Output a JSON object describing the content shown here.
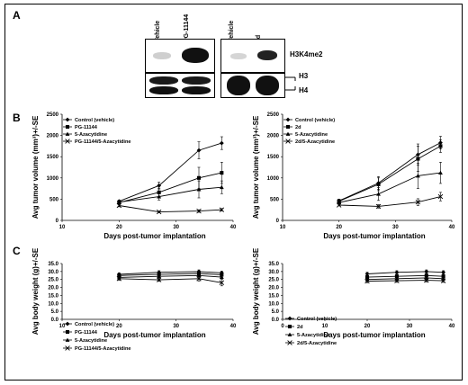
{
  "panels": {
    "a": "A",
    "b": "B",
    "c": "C"
  },
  "blot": {
    "left_lanes": [
      "Vehicle",
      "PG-11144"
    ],
    "right_lanes": [
      "Vehicle",
      "2d"
    ],
    "label_h3k4me2": "H3K4me2",
    "label_h3": "H3",
    "label_h4": "H4"
  },
  "chart_data": [
    {
      "type": "line",
      "ylabel": "Avg tumor volume (mm³)+/-SE",
      "xlabel": "Days post-tumor implantation",
      "xlim": [
        10,
        40
      ],
      "ylim": [
        0,
        2500
      ],
      "xticks": [
        10,
        20,
        30,
        40
      ],
      "yticks": [
        0,
        500,
        1000,
        1500,
        2000,
        2500
      ],
      "legend": "top-left",
      "series": [
        {
          "name": "Control (vehicle)",
          "marker": "diamond",
          "x": [
            20,
            27,
            34,
            38
          ],
          "y": [
            450,
            820,
            1650,
            1820
          ],
          "err": [
            30,
            80,
            200,
            150
          ]
        },
        {
          "name": "PG-11144",
          "marker": "square",
          "x": [
            20,
            27,
            34,
            38
          ],
          "y": [
            420,
            660,
            1000,
            1120
          ],
          "err": [
            30,
            100,
            250,
            250
          ]
        },
        {
          "name": "5-Azacytidine",
          "marker": "triangle",
          "x": [
            20,
            27,
            34,
            38
          ],
          "y": [
            430,
            560,
            730,
            780
          ],
          "err": [
            30,
            80,
            200,
            150
          ]
        },
        {
          "name": "PG-11144/5-Azacytidine",
          "marker": "x",
          "x": [
            20,
            27,
            34,
            38
          ],
          "y": [
            350,
            200,
            220,
            250
          ],
          "err": [
            30,
            20,
            30,
            30
          ]
        }
      ]
    },
    {
      "type": "line",
      "ylabel": "Avg tumor volume (mm³)+/-SE",
      "xlabel": "Days post-tumor implantation",
      "xlim": [
        10,
        40
      ],
      "ylim": [
        0,
        2500
      ],
      "xticks": [
        10,
        20,
        30,
        40
      ],
      "yticks": [
        0,
        500,
        1000,
        1500,
        2000,
        2500
      ],
      "legend": "top-left",
      "series": [
        {
          "name": "Control (vehicle)",
          "marker": "diamond",
          "x": [
            20,
            27,
            34,
            38
          ],
          "y": [
            460,
            880,
            1550,
            1830
          ],
          "err": [
            40,
            150,
            250,
            150
          ]
        },
        {
          "name": "2d",
          "marker": "square",
          "x": [
            20,
            27,
            34,
            38
          ],
          "y": [
            450,
            850,
            1450,
            1750
          ],
          "err": [
            40,
            150,
            300,
            150
          ]
        },
        {
          "name": "5-Azacytidine",
          "marker": "triangle",
          "x": [
            20,
            27,
            34,
            38
          ],
          "y": [
            420,
            620,
            1050,
            1120
          ],
          "err": [
            40,
            150,
            300,
            250
          ]
        },
        {
          "name": "2d/5-Azacytidine",
          "marker": "x",
          "x": [
            20,
            27,
            34,
            38
          ],
          "y": [
            360,
            330,
            430,
            560
          ],
          "err": [
            20,
            40,
            80,
            100
          ]
        }
      ]
    },
    {
      "type": "line",
      "ylabel": "Avg body weight (g)+/-SE",
      "xlabel": "Days post-tumor implantation",
      "xlim": [
        10,
        40
      ],
      "ylim": [
        0,
        35
      ],
      "xticks": [
        10,
        20,
        30,
        40
      ],
      "yticks": [
        0,
        5,
        10,
        15,
        20,
        25,
        30,
        35
      ],
      "yticklabels": [
        "0.0",
        "5.0",
        "10.0",
        "15.0",
        "20.0",
        "25.0",
        "30.0",
        "35.0"
      ],
      "legend": "bottom-left",
      "series": [
        {
          "name": "Control (vehicle)",
          "marker": "diamond",
          "x": [
            20,
            27,
            34,
            38
          ],
          "y": [
            28.2,
            29.5,
            30.0,
            29.2
          ],
          "err": [
            1.0,
            1.0,
            1.0,
            1.0
          ]
        },
        {
          "name": "PG-11144",
          "marker": "square",
          "x": [
            20,
            27,
            34,
            38
          ],
          "y": [
            27.5,
            28.3,
            28.8,
            28.0
          ],
          "err": [
            1.0,
            1.0,
            1.2,
            1.0
          ]
        },
        {
          "name": "5-Azacytidine",
          "marker": "triangle",
          "x": [
            20,
            27,
            34,
            38
          ],
          "y": [
            26.3,
            27.0,
            27.5,
            26.5
          ],
          "err": [
            1.0,
            1.0,
            1.0,
            1.0
          ]
        },
        {
          "name": "PG-11144/5-Azacytidine",
          "marker": "x",
          "x": [
            20,
            27,
            34,
            38
          ],
          "y": [
            25.5,
            24.8,
            25.5,
            23.0
          ],
          "err": [
            1.0,
            1.0,
            1.5,
            2.0
          ]
        }
      ]
    },
    {
      "type": "line",
      "ylabel": "Avg body weight (g)+/-SE",
      "xlabel": "Days post-tumor implantation",
      "xlim": [
        0,
        40
      ],
      "ylim": [
        0,
        35
      ],
      "xticks": [
        0,
        10,
        20,
        30,
        40
      ],
      "yticks": [
        0,
        5,
        10,
        15,
        20,
        25,
        30,
        35
      ],
      "yticklabels": [
        "0.0",
        "5.0",
        "10.0",
        "15.0",
        "20.0",
        "25.0",
        "30.0",
        "35.0"
      ],
      "legend": "bottom-left",
      "series": [
        {
          "name": "Control (vehicle)",
          "marker": "diamond",
          "x": [
            20,
            27,
            34,
            38
          ],
          "y": [
            28.5,
            29.5,
            30.0,
            29.5
          ],
          "err": [
            1.0,
            1.0,
            1.0,
            1.0
          ]
        },
        {
          "name": "2d",
          "marker": "square",
          "x": [
            20,
            27,
            34,
            38
          ],
          "y": [
            26.5,
            27.0,
            27.5,
            27.0
          ],
          "err": [
            1.0,
            1.0,
            1.0,
            1.0
          ]
        },
        {
          "name": "5-Azacytidine",
          "marker": "triangle",
          "x": [
            20,
            27,
            34,
            38
          ],
          "y": [
            25.0,
            25.5,
            26.0,
            25.5
          ],
          "err": [
            1.0,
            1.0,
            1.0,
            1.0
          ]
        },
        {
          "name": "2d/5-Azacytidine",
          "marker": "x",
          "x": [
            20,
            27,
            34,
            38
          ],
          "y": [
            24.0,
            24.2,
            24.5,
            24.2
          ],
          "err": [
            1.0,
            1.0,
            1.0,
            1.0
          ]
        }
      ]
    }
  ]
}
